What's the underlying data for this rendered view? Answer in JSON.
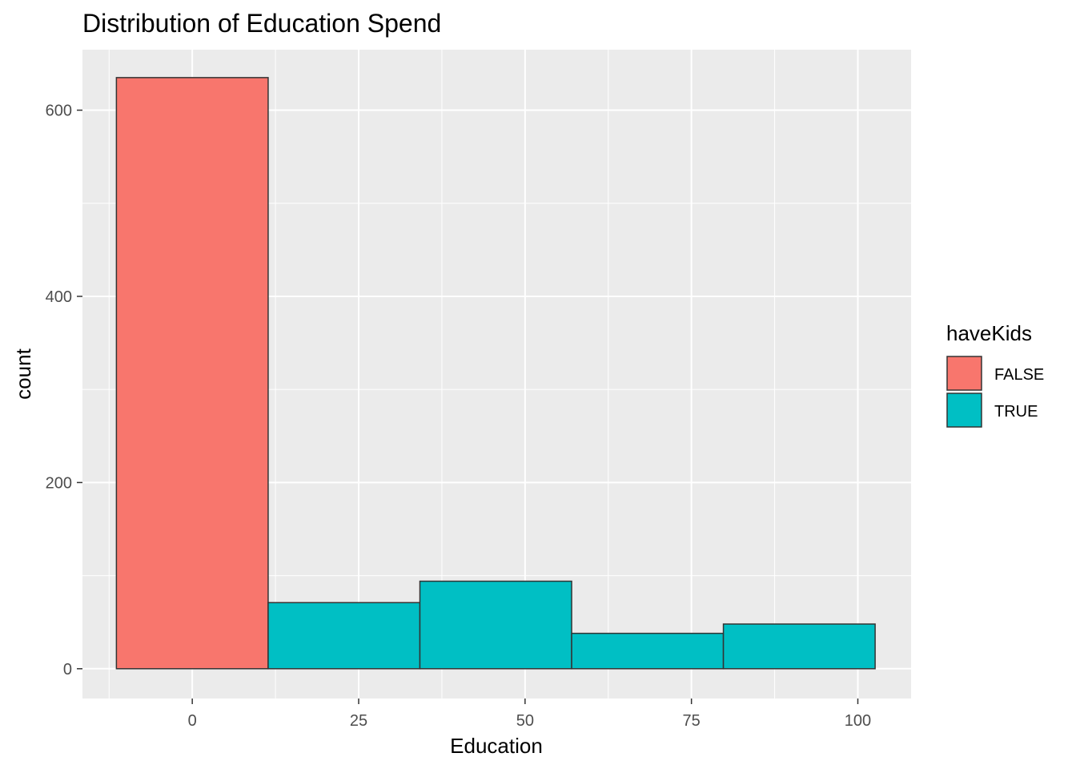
{
  "chart_data": {
    "type": "bar",
    "title": "Distribution of Education Spend",
    "xlabel": "Education",
    "ylabel": "count",
    "x_ticks": [
      0,
      25,
      50,
      75,
      100
    ],
    "y_ticks": [
      0,
      200,
      400,
      600
    ],
    "xlim": [
      -16.5,
      108
    ],
    "ylim": [
      -32,
      665
    ],
    "bin_width": 22.8,
    "bins": [
      {
        "x_center": 0.0,
        "count": 635,
        "group": "FALSE"
      },
      {
        "x_center": 22.8,
        "count": 71,
        "group": "TRUE"
      },
      {
        "x_center": 45.6,
        "count": 94,
        "group": "TRUE"
      },
      {
        "x_center": 68.4,
        "count": 38,
        "group": "TRUE"
      },
      {
        "x_center": 91.2,
        "count": 48,
        "group": "TRUE"
      }
    ],
    "legend": {
      "title": "haveKids",
      "position": "right",
      "entries": [
        {
          "label": "FALSE",
          "color": "#F8766D"
        },
        {
          "label": "TRUE",
          "color": "#00BFC4"
        }
      ]
    },
    "grid": true,
    "panel_background": "#EBEBEB"
  }
}
